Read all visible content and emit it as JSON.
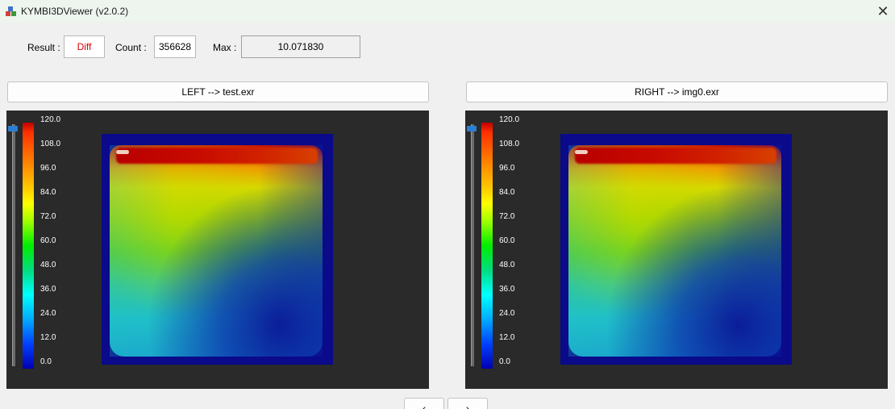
{
  "window": {
    "title": "KYMBI3DViewer (v2.0.2)"
  },
  "stats": {
    "result_label": "Result :",
    "result_value": "Diff",
    "count_label": "Count :",
    "count_value": "356628",
    "max_label": "Max :",
    "max_value": "10.071830"
  },
  "left": {
    "file_button": "LEFT --> test.exr",
    "scale_ticks": [
      "120.0",
      "108.0",
      "96.0",
      "84.0",
      "72.0",
      "60.0",
      "48.0",
      "36.0",
      "24.0",
      "12.0",
      "0.0"
    ]
  },
  "right": {
    "file_button": "RIGHT --> img0.exr",
    "scale_ticks": [
      "120.0",
      "108.0",
      "96.0",
      "84.0",
      "72.0",
      "60.0",
      "48.0",
      "36.0",
      "24.0",
      "12.0",
      "0.0"
    ]
  },
  "nav": {
    "prev": "‹",
    "next": "›"
  },
  "colors": {
    "result_value": "#e00000",
    "panel_bg": "#2a2a2a",
    "slider_thumb": "#2a7fd4"
  }
}
